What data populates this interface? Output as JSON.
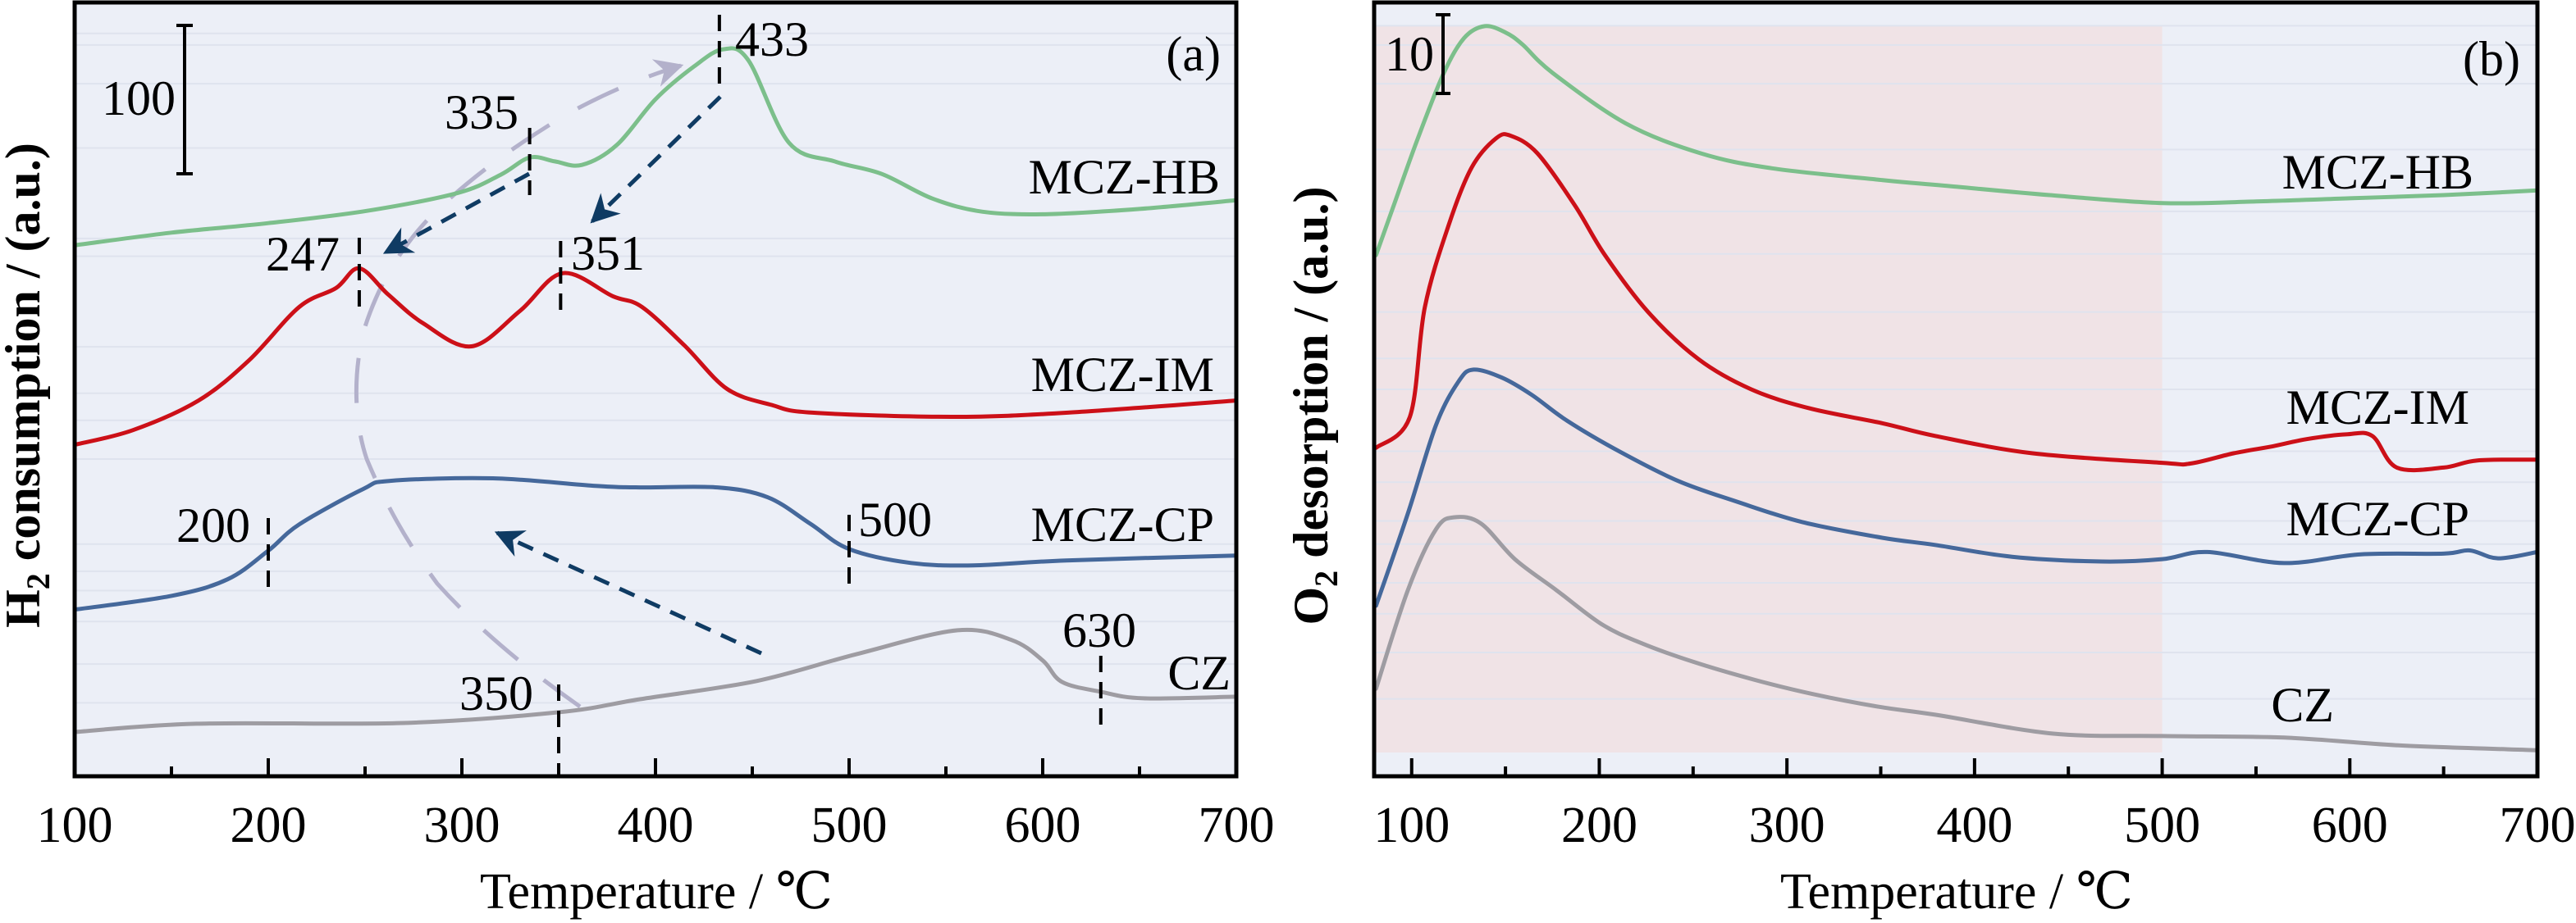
{
  "figure": {
    "colors": {
      "background": "#eceff7",
      "highlight": "#f0e3e6",
      "grid": "#dfe3ee",
      "frame": "#000000",
      "marker": "#000000",
      "arrow_dark": "#0f3b63",
      "arrow_light": "#b3b1cb"
    }
  },
  "chart_data": [
    {
      "id": "a",
      "type": "line",
      "panel_tag": "(a)",
      "title": "",
      "xlabel": "Temperature / ℃",
      "ylabel_main": "H",
      "ylabel_sub": "2",
      "ylabel_rest": " consumption / (a.u.)",
      "xlim": [
        100,
        700
      ],
      "ylim": [
        0,
        521
      ],
      "xticks": [
        100,
        200,
        300,
        400,
        500,
        600,
        700
      ],
      "xtick_labels": [
        "100",
        "200",
        "300",
        "400",
        "500",
        "600",
        "700"
      ],
      "minor_xticks": [
        150,
        250,
        350,
        450,
        550,
        650
      ],
      "grid": true,
      "scale_bar": {
        "label": "100",
        "value": 100
      },
      "series": [
        {
          "name": "MCZ-HB",
          "color": "#7cbf8b",
          "label": "MCZ-HB",
          "points": [
            [
              100,
              357.5
            ],
            [
              150,
              366
            ],
            [
              200,
              372.4
            ],
            [
              251,
              380.7
            ],
            [
              298,
              392.8
            ],
            [
              320,
              405
            ],
            [
              335,
              416.6
            ],
            [
              348,
              414
            ],
            [
              362,
              411.6
            ],
            [
              380,
              425
            ],
            [
              400,
              455.8
            ],
            [
              420,
              478
            ],
            [
              435,
              489.5
            ],
            [
              448,
              482
            ],
            [
              469,
              426.5
            ],
            [
              493,
              413.8
            ],
            [
              517,
              405.5
            ],
            [
              543,
              389
            ],
            [
              569,
              380.1
            ],
            [
              603,
              378.5
            ],
            [
              650,
              382
            ],
            [
              700,
              387.8
            ]
          ]
        },
        {
          "name": "MCZ-IM",
          "color": "#cc1018",
          "label": "MCZ-IM",
          "points": [
            [
              100,
              223.2
            ],
            [
              130,
              233
            ],
            [
              164,
              253
            ],
            [
              190,
              280
            ],
            [
              216,
              316
            ],
            [
              235,
              328.7
            ],
            [
              247,
              342
            ],
            [
              262,
              324.3
            ],
            [
              280,
              305
            ],
            [
              305,
              289.5
            ],
            [
              330,
              313.3
            ],
            [
              352,
              338.7
            ],
            [
              378,
              323.2
            ],
            [
              393,
              316
            ],
            [
              415,
              290
            ],
            [
              437,
              260.8
            ],
            [
              460,
              250
            ],
            [
              481,
              244.8
            ],
            [
              553,
              242
            ],
            [
              613,
              244.8
            ],
            [
              700,
              253
            ]
          ]
        },
        {
          "name": "MCZ-CP",
          "color": "#45689b",
          "label": "MCZ-CP",
          "points": [
            [
              100,
              112.2
            ],
            [
              150,
              121.5
            ],
            [
              179,
              132.6
            ],
            [
              200,
              151.9
            ],
            [
              216,
              169.6
            ],
            [
              249,
              193.4
            ],
            [
              263,
              198.9
            ],
            [
              316,
              200.6
            ],
            [
              368,
              195.6
            ],
            [
              392,
              194.5
            ],
            [
              432,
              194.5
            ],
            [
              458,
              187.8
            ],
            [
              480,
              170
            ],
            [
              500,
              153
            ],
            [
              532,
              143.6
            ],
            [
              564,
              142
            ],
            [
              612,
              145.3
            ],
            [
              700,
              148.6
            ]
          ]
        },
        {
          "name": "CZ",
          "color": "#9e9ca2",
          "label": "CZ",
          "points": [
            [
              100,
              29.8
            ],
            [
              163,
              35.4
            ],
            [
              270,
              35.9
            ],
            [
              350,
              43.1
            ],
            [
              392,
              51.9
            ],
            [
              452,
              64.1
            ],
            [
              504,
              82.3
            ],
            [
              556,
              98.3
            ],
            [
              584,
              91.7
            ],
            [
              600,
              78
            ],
            [
              610,
              63.5
            ],
            [
              630,
              56.9
            ],
            [
              652,
              52.5
            ],
            [
              700,
              53.6
            ]
          ]
        }
      ],
      "annotations": [
        {
          "label": "433",
          "x": 433
        },
        {
          "label": "335",
          "x": 335
        },
        {
          "label": "247",
          "x": 247
        },
        {
          "label": "351",
          "x": 351
        },
        {
          "label": "200",
          "x": 200
        },
        {
          "label": "500",
          "x": 500
        },
        {
          "label": "350",
          "x": 350
        },
        {
          "label": "630",
          "x": 630
        }
      ]
    },
    {
      "id": "b",
      "type": "line",
      "panel_tag": "(b)",
      "title": "",
      "xlabel": "Temperature / ℃",
      "ylabel_main": "O",
      "ylabel_sub": "2",
      "ylabel_rest": " desorption / (a.u.)",
      "xlim": [
        80,
        700
      ],
      "ylim": [
        0,
        98
      ],
      "xticks": [
        100,
        200,
        300,
        400,
        500,
        600,
        700
      ],
      "xtick_labels": [
        "100",
        "200",
        "300",
        "400",
        "500",
        "600",
        "700"
      ],
      "minor_xticks": [
        150,
        250,
        350,
        450,
        550,
        650
      ],
      "grid": true,
      "highlight_region": {
        "x": [
          80,
          500
        ]
      },
      "scale_bar": {
        "label": "10",
        "value": 10
      },
      "series": [
        {
          "name": "MCZ-HB",
          "color": "#7cbf8b",
          "label": "MCZ-HB",
          "points": [
            [
              81,
              66
            ],
            [
              90,
              72
            ],
            [
              103,
              80.6
            ],
            [
              117,
              89
            ],
            [
              128,
              93.5
            ],
            [
              139,
              95
            ],
            [
              150,
              94.2
            ],
            [
              159,
              92.7
            ],
            [
              175,
              89.1
            ],
            [
              214,
              82.7
            ],
            [
              254,
              78.9
            ],
            [
              292,
              77
            ],
            [
              351,
              75.5
            ],
            [
              384,
              74.8
            ],
            [
              440,
              73.6
            ],
            [
              500,
              72.6
            ],
            [
              550,
              72.8
            ],
            [
              600,
              73.2
            ],
            [
              650,
              73.6
            ],
            [
              700,
              74.2
            ]
          ]
        },
        {
          "name": "MCZ-IM",
          "color": "#cc1018",
          "label": "MCZ-IM",
          "points": [
            [
              81,
              41.6
            ],
            [
              99,
              45.5
            ],
            [
              107,
              59.4
            ],
            [
              120,
              70
            ],
            [
              132,
              77.1
            ],
            [
              145,
              80.8
            ],
            [
              153,
              81.1
            ],
            [
              167,
              78.9
            ],
            [
              187,
              72.3
            ],
            [
              203,
              66
            ],
            [
              226,
              58.8
            ],
            [
              253,
              52.8
            ],
            [
              281,
              49
            ],
            [
              312,
              46.6
            ],
            [
              351,
              44.7
            ],
            [
              379,
              43.1
            ],
            [
              431,
              40.9
            ],
            [
              500,
              39.7
            ],
            [
              515,
              39.6
            ],
            [
              538,
              40.9
            ],
            [
              559,
              41.8
            ],
            [
              577,
              42.7
            ],
            [
              598,
              43.3
            ],
            [
              612,
              43.1
            ],
            [
              625,
              39.1
            ],
            [
              650,
              39.1
            ],
            [
              668,
              40
            ],
            [
              700,
              40.1
            ]
          ]
        },
        {
          "name": "MCZ-CP",
          "color": "#45689b",
          "label": "MCZ-CP",
          "points": [
            [
              81,
              21.6
            ],
            [
              98,
              33.3
            ],
            [
              113,
              44.5
            ],
            [
              125,
              50
            ],
            [
              133,
              51.5
            ],
            [
              148,
              50.5
            ],
            [
              164,
              48.3
            ],
            [
              183,
              45
            ],
            [
              211,
              41.1
            ],
            [
              242,
              37.4
            ],
            [
              273,
              34.8
            ],
            [
              308,
              32.2
            ],
            [
              351,
              30.2
            ],
            [
              379,
              29.3
            ],
            [
              420,
              27.8
            ],
            [
              468,
              27.2
            ],
            [
              500,
              27.5
            ],
            [
              524,
              28.4
            ],
            [
              565,
              27
            ],
            [
              606,
              28.1
            ],
            [
              650,
              28.2
            ],
            [
              664,
              28.6
            ],
            [
              679,
              27.6
            ],
            [
              700,
              28.4
            ]
          ]
        },
        {
          "name": "CZ",
          "color": "#9e9ca2",
          "label": "CZ",
          "points": [
            [
              81,
              11.1
            ],
            [
              98,
              23.6
            ],
            [
              113,
              31.3
            ],
            [
              123,
              32.8
            ],
            [
              137,
              32
            ],
            [
              155,
              27.5
            ],
            [
              177,
              23.6
            ],
            [
              201,
              19.3
            ],
            [
              222,
              16.9
            ],
            [
              250,
              14.5
            ],
            [
              283,
              12.2
            ],
            [
              314,
              10.4
            ],
            [
              349,
              8.8
            ],
            [
              379,
              7.8
            ],
            [
              442,
              5.4
            ],
            [
              500,
              5.1
            ],
            [
              565,
              4.9
            ],
            [
              627,
              3.9
            ],
            [
              700,
              3.3
            ]
          ]
        }
      ]
    }
  ]
}
